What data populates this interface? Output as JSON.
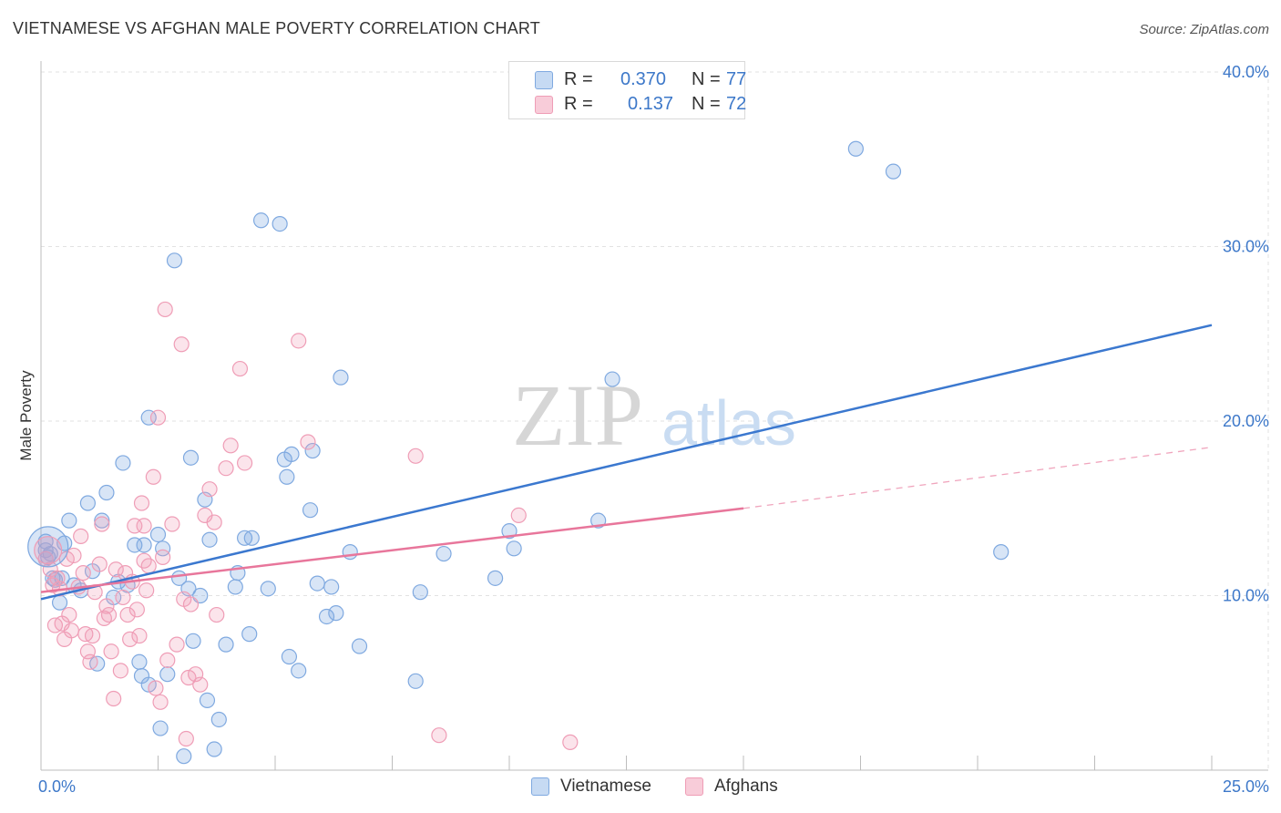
{
  "title": "VIETNAMESE VS AFGHAN MALE POVERTY CORRELATION CHART",
  "source": "Source: ZipAtlas.com",
  "watermark": {
    "zip": "ZIP",
    "atlas": "atlas"
  },
  "legend": {
    "rows": [
      {
        "r_label": "R =",
        "r_value": "0.370",
        "n_label": "N =",
        "n_value": "77",
        "color": "#7fa9e0"
      },
      {
        "r_label": "R =",
        "r_value": "0.137",
        "n_label": "N =",
        "n_value": "72",
        "color": "#ef9db6"
      }
    ]
  },
  "bottom_legend": [
    {
      "label": "Vietnamese",
      "color": "#7fa9e0"
    },
    {
      "label": "Afghans",
      "color": "#ef9db6"
    }
  ],
  "chart_data": {
    "type": "scatter",
    "title": "VIETNAMESE VS AFGHAN MALE POVERTY CORRELATION CHART",
    "xlabel": "",
    "ylabel": "Male Poverty",
    "xlim": [
      0,
      25
    ],
    "ylim": [
      0,
      40
    ],
    "x_tick_labels": [
      "0.0%",
      "25.0%"
    ],
    "y_ticks": [
      10,
      20,
      30,
      40
    ],
    "y_tick_labels": [
      "10.0%",
      "20.0%",
      "30.0%",
      "40.0%"
    ],
    "grid": true,
    "legend_position": "top-center",
    "series": [
      {
        "name": "Vietnamese",
        "color": "#5b8fd9",
        "trend": {
          "x": [
            0,
            25
          ],
          "y": [
            9.8,
            25.5
          ],
          "dashed_from": null
        },
        "points": [
          [
            0.1,
            13.1
          ],
          [
            0.2,
            12.4
          ],
          [
            0.25,
            11.0
          ],
          [
            0.4,
            9.6
          ],
          [
            0.5,
            13.0
          ],
          [
            0.6,
            14.3
          ],
          [
            0.7,
            10.6
          ],
          [
            0.85,
            10.3
          ],
          [
            1.0,
            15.3
          ],
          [
            1.1,
            11.4
          ],
          [
            1.2,
            6.1
          ],
          [
            1.3,
            14.3
          ],
          [
            1.4,
            15.9
          ],
          [
            1.55,
            9.9
          ],
          [
            1.65,
            10.8
          ],
          [
            1.75,
            17.6
          ],
          [
            1.85,
            10.6
          ],
          [
            2.0,
            12.9
          ],
          [
            2.1,
            6.2
          ],
          [
            2.15,
            5.4
          ],
          [
            2.2,
            12.9
          ],
          [
            2.3,
            4.9
          ],
          [
            2.3,
            20.2
          ],
          [
            2.5,
            13.5
          ],
          [
            2.55,
            2.4
          ],
          [
            2.6,
            12.7
          ],
          [
            2.7,
            5.5
          ],
          [
            2.85,
            29.2
          ],
          [
            2.95,
            11.0
          ],
          [
            3.05,
            0.8
          ],
          [
            3.15,
            10.4
          ],
          [
            3.2,
            17.9
          ],
          [
            3.25,
            7.4
          ],
          [
            3.4,
            10.0
          ],
          [
            3.5,
            15.5
          ],
          [
            3.55,
            4.0
          ],
          [
            3.6,
            13.2
          ],
          [
            3.7,
            1.2
          ],
          [
            3.8,
            2.9
          ],
          [
            3.95,
            7.2
          ],
          [
            4.15,
            10.5
          ],
          [
            4.2,
            11.3
          ],
          [
            4.35,
            13.3
          ],
          [
            4.45,
            7.8
          ],
          [
            4.5,
            13.3
          ],
          [
            4.7,
            31.5
          ],
          [
            4.85,
            10.4
          ],
          [
            5.1,
            31.3
          ],
          [
            5.2,
            17.8
          ],
          [
            5.25,
            16.8
          ],
          [
            5.3,
            6.5
          ],
          [
            5.35,
            18.1
          ],
          [
            5.5,
            5.7
          ],
          [
            5.75,
            14.9
          ],
          [
            5.8,
            18.3
          ],
          [
            5.9,
            10.7
          ],
          [
            6.1,
            8.8
          ],
          [
            6.2,
            10.5
          ],
          [
            6.3,
            9.0
          ],
          [
            6.4,
            22.5
          ],
          [
            6.6,
            12.5
          ],
          [
            6.8,
            7.1
          ],
          [
            8.0,
            5.1
          ],
          [
            8.1,
            10.2
          ],
          [
            8.6,
            12.4
          ],
          [
            9.7,
            11.0
          ],
          [
            10.0,
            13.7
          ],
          [
            10.1,
            12.7
          ],
          [
            11.9,
            14.3
          ],
          [
            12.2,
            22.4
          ],
          [
            17.4,
            35.6
          ],
          [
            18.2,
            34.3
          ],
          [
            20.5,
            12.5
          ],
          [
            0.1,
            12.6
          ],
          [
            0.3,
            10.9
          ],
          [
            0.45,
            11.0
          ],
          [
            0.15,
            12.2
          ]
        ]
      },
      {
        "name": "Afghans",
        "color": "#e87fa0",
        "trend": {
          "x": [
            0,
            15
          ],
          "y": [
            10.2,
            15.0
          ],
          "dashed_to": [
            25,
            18.5
          ]
        },
        "points": [
          [
            0.1,
            12.1
          ],
          [
            0.2,
            11.5
          ],
          [
            0.25,
            10.6
          ],
          [
            0.3,
            8.3
          ],
          [
            0.35,
            11.0
          ],
          [
            0.4,
            10.4
          ],
          [
            0.45,
            8.4
          ],
          [
            0.5,
            7.5
          ],
          [
            0.55,
            12.1
          ],
          [
            0.6,
            8.9
          ],
          [
            0.65,
            8.0
          ],
          [
            0.7,
            12.3
          ],
          [
            0.8,
            10.5
          ],
          [
            0.85,
            13.4
          ],
          [
            0.9,
            11.3
          ],
          [
            0.95,
            7.8
          ],
          [
            1.0,
            6.8
          ],
          [
            1.05,
            6.2
          ],
          [
            1.1,
            7.7
          ],
          [
            1.15,
            10.2
          ],
          [
            1.25,
            11.8
          ],
          [
            1.3,
            14.1
          ],
          [
            1.35,
            8.7
          ],
          [
            1.4,
            9.4
          ],
          [
            1.45,
            8.9
          ],
          [
            1.5,
            6.8
          ],
          [
            1.55,
            4.1
          ],
          [
            1.6,
            11.5
          ],
          [
            1.7,
            5.7
          ],
          [
            1.75,
            9.9
          ],
          [
            1.8,
            11.3
          ],
          [
            1.85,
            8.9
          ],
          [
            1.9,
            7.5
          ],
          [
            1.95,
            10.8
          ],
          [
            2.0,
            14.0
          ],
          [
            2.05,
            9.2
          ],
          [
            2.1,
            7.7
          ],
          [
            2.15,
            15.3
          ],
          [
            2.2,
            12.0
          ],
          [
            2.25,
            10.3
          ],
          [
            2.3,
            11.7
          ],
          [
            2.4,
            16.8
          ],
          [
            2.45,
            4.7
          ],
          [
            2.5,
            20.2
          ],
          [
            2.55,
            3.9
          ],
          [
            2.6,
            12.2
          ],
          [
            2.65,
            26.4
          ],
          [
            2.7,
            6.3
          ],
          [
            2.8,
            14.1
          ],
          [
            2.9,
            7.2
          ],
          [
            3.0,
            24.4
          ],
          [
            3.05,
            9.8
          ],
          [
            3.15,
            5.3
          ],
          [
            3.2,
            9.5
          ],
          [
            3.3,
            5.5
          ],
          [
            3.4,
            4.9
          ],
          [
            3.5,
            14.6
          ],
          [
            3.6,
            16.1
          ],
          [
            3.7,
            14.2
          ],
          [
            3.75,
            8.9
          ],
          [
            3.95,
            17.3
          ],
          [
            4.05,
            18.6
          ],
          [
            4.25,
            23.0
          ],
          [
            4.35,
            17.6
          ],
          [
            5.5,
            24.6
          ],
          [
            5.7,
            18.8
          ],
          [
            8.0,
            18.0
          ],
          [
            8.5,
            2.0
          ],
          [
            10.2,
            14.6
          ],
          [
            11.3,
            1.6
          ],
          [
            3.1,
            1.8
          ],
          [
            2.2,
            14.0
          ]
        ]
      }
    ]
  }
}
